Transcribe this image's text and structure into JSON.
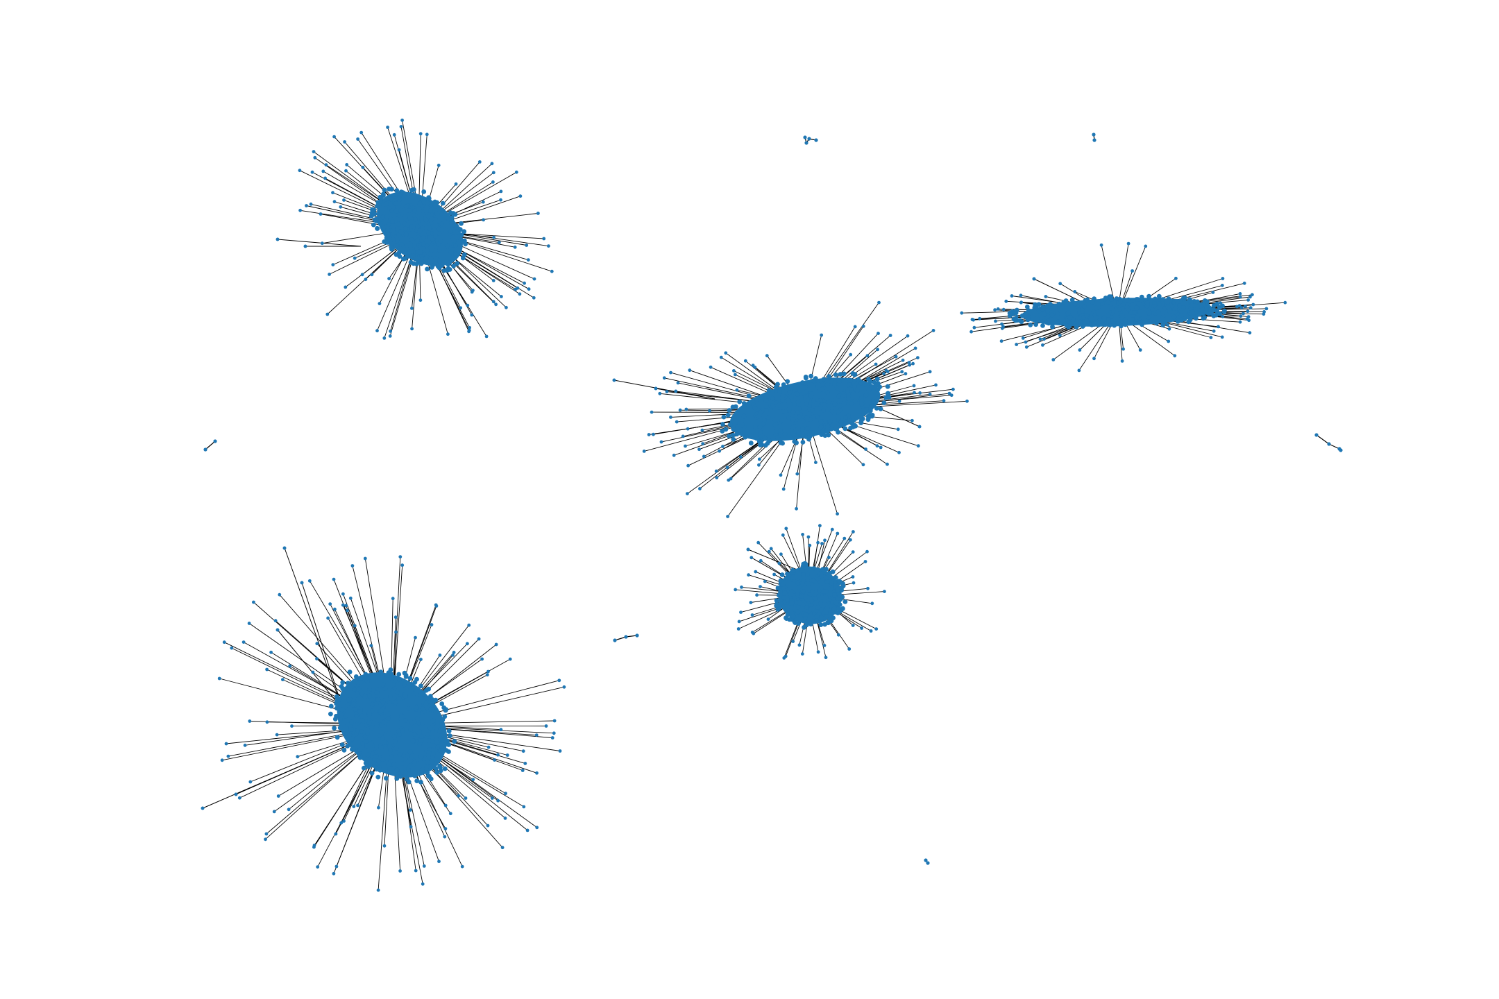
{
  "graph": {
    "node_color": "#1f77b4",
    "edge_color": "#000000",
    "background": "#ffffff",
    "clusters": [
      {
        "name": "cluster-top-left",
        "shape": "dense-ellipse",
        "tilt": "down-right"
      },
      {
        "name": "cluster-top-center",
        "shape": "small-component"
      },
      {
        "name": "cluster-top-right-dot",
        "shape": "isolated-pair"
      },
      {
        "name": "cluster-right",
        "shape": "elongated-ellipse",
        "tilt": "horizontal"
      },
      {
        "name": "cluster-center",
        "shape": "dense-ellipse",
        "tilt": "up-right"
      },
      {
        "name": "cluster-left-small",
        "shape": "isolated-pair"
      },
      {
        "name": "cluster-far-right",
        "shape": "small-chain"
      },
      {
        "name": "cluster-bottom-left",
        "shape": "dense-ellipse",
        "tilt": "down-right"
      },
      {
        "name": "cluster-bottom-center",
        "shape": "dense-round"
      },
      {
        "name": "cluster-small-left",
        "shape": "small-chain"
      },
      {
        "name": "cluster-bottom-dot",
        "shape": "isolated-pair"
      }
    ]
  }
}
